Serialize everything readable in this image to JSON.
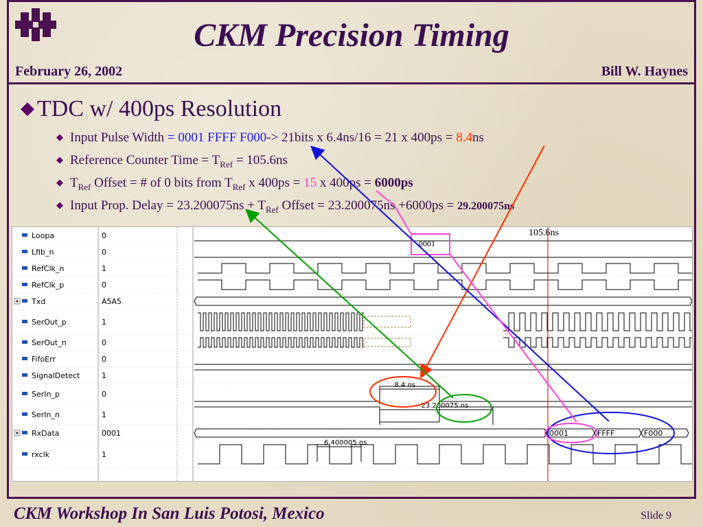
{
  "header": {
    "title": "CKM Precision Timing",
    "date": "February 26, 2002",
    "author": "Bill W. Haynes"
  },
  "main": {
    "heading": "TDC w/ 400ps Resolution",
    "bullets": {
      "b1": {
        "a": "Input Pulse Width ",
        "b": "= 0001 FFFF F000",
        "c": "-> 21bits x 6.4ns/16 = 21 x 400ps = ",
        "d": "8.4",
        "e": "ns"
      },
      "b2": {
        "a": "Reference Counter Time = T",
        "sub": "Ref",
        "b": " = 105.6ns"
      },
      "b3": {
        "a": "T",
        "sub": "Ref",
        "b": " Offset  = # of 0 bits from T",
        "sub2": "Ref",
        "c": " x 400ps = ",
        "d": "15",
        "e": " x 400ps = ",
        "f": "6000ps"
      },
      "b4": {
        "a": "Input Prop. Delay = 23.200075ns + T",
        "sub": "Ref",
        "b": " Offset = 23.200075ns +6000ps = ",
        "c": "29.200075ns"
      }
    }
  },
  "waveform": {
    "signals": [
      {
        "name": "Loopa",
        "value": "0",
        "icon": "wire-icon"
      },
      {
        "name": "Lfib_n",
        "value": "0",
        "icon": "input-pin-icon"
      },
      {
        "name": "RefClk_n",
        "value": "1",
        "icon": "wire-icon"
      },
      {
        "name": "RefClk_p",
        "value": "0",
        "icon": "wire-icon"
      },
      {
        "name": "Txd",
        "value": "A5A5",
        "icon": "wire-icon",
        "expandable": true
      },
      {
        "name": "SerOut_p",
        "value": "1",
        "icon": "wire-icon"
      },
      {
        "name": "SerOut_n",
        "value": "0",
        "icon": "wire-icon"
      },
      {
        "name": "FifoErr",
        "value": "0",
        "icon": "wire-icon"
      },
      {
        "name": "SignalDetect",
        "value": "1",
        "icon": "wire-icon"
      },
      {
        "name": "SerIn_p",
        "value": "0",
        "icon": "wire-icon"
      },
      {
        "name": "SerIn_n",
        "value": "1",
        "icon": "wire-icon"
      },
      {
        "name": "RxData",
        "value": "0001",
        "icon": "wire-icon",
        "expandable": true
      },
      {
        "name": "rxclk",
        "value": "1",
        "icon": "wire-icon"
      }
    ],
    "annotations": {
      "ref_time": "105.6ns",
      "ref_box": "0001",
      "pulse_width": "8.4 ns",
      "prop_delay": "23.200075 ns",
      "clk_period": "6.400005 ns",
      "rx_values": [
        "0001",
        "FFFF",
        "F000"
      ]
    },
    "colors": {
      "orange": "#ff3000",
      "green": "#00a000",
      "blue": "#1010dd",
      "pink": "#ff44dd",
      "cursor": "#cc0000"
    }
  },
  "footer": {
    "event": "CKM Workshop In San Luis Potosi, Mexico",
    "slide": "Slide 9"
  }
}
